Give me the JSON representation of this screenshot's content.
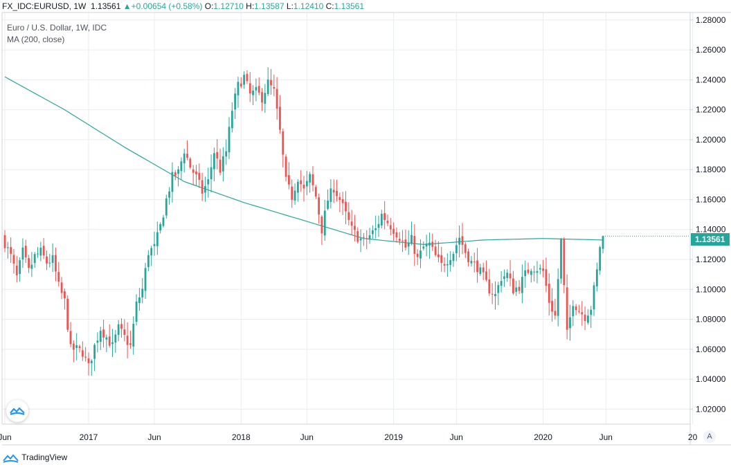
{
  "header": {
    "symbol": "FX_IDC:EURUSD, 1W",
    "last": "1.13561",
    "change": "+0.00654 (+0.58%)",
    "o_label": "O:",
    "o": "1.12710",
    "h_label": "H:",
    "h": "1.13587",
    "l_label": "L:",
    "l": "1.12410",
    "c_label": "C:",
    "c": "1.13561"
  },
  "legend": {
    "series": "Euro / U.S. Dollar, 1W, IDC",
    "indicator": "MA (200, close)"
  },
  "price_label": "1.13561",
  "auto_label": "A",
  "brand": "TradingView",
  "colors": {
    "up": "#26a69a",
    "down": "#ef5350",
    "ma": "#26a69a",
    "grid": "#e9ecf1",
    "axis": "#cfd3dc"
  },
  "chart_data": {
    "type": "candlestick",
    "yaxis_ticks": [
      "1.28000",
      "1.26000",
      "1.24000",
      "1.22000",
      "1.20000",
      "1.18000",
      "1.16000",
      "1.14000",
      "1.12000",
      "1.10000",
      "1.08000",
      "1.06000",
      "1.04000",
      "1.02000"
    ],
    "ylim": [
      1.01,
      1.285
    ],
    "xaxis_ticks": [
      {
        "label": "Jun",
        "week": 0
      },
      {
        "label": "2017",
        "week": 28
      },
      {
        "label": "Jun",
        "week": 50
      },
      {
        "label": "2018",
        "week": 79
      },
      {
        "label": "Jun",
        "week": 101
      },
      {
        "label": "2019",
        "week": 130
      },
      {
        "label": "Jun",
        "week": 151
      },
      {
        "label": "2020",
        "week": 180
      },
      {
        "label": "Jun",
        "week": 201
      },
      {
        "label": "20",
        "week": 230
      }
    ],
    "close_anchors": [
      [
        0,
        1.131
      ],
      [
        2,
        1.122
      ],
      [
        4,
        1.108
      ],
      [
        6,
        1.125
      ],
      [
        8,
        1.112
      ],
      [
        10,
        1.122
      ],
      [
        12,
        1.125
      ],
      [
        14,
        1.118
      ],
      [
        16,
        1.12
      ],
      [
        18,
        1.102
      ],
      [
        20,
        1.092
      ],
      [
        22,
        1.06
      ],
      [
        24,
        1.06
      ],
      [
        26,
        1.058
      ],
      [
        28,
        1.048
      ],
      [
        30,
        1.062
      ],
      [
        32,
        1.074
      ],
      [
        34,
        1.068
      ],
      [
        36,
        1.062
      ],
      [
        38,
        1.074
      ],
      [
        40,
        1.068
      ],
      [
        42,
        1.062
      ],
      [
        44,
        1.09
      ],
      [
        46,
        1.1
      ],
      [
        48,
        1.125
      ],
      [
        50,
        1.128
      ],
      [
        52,
        1.142
      ],
      [
        54,
        1.16
      ],
      [
        56,
        1.175
      ],
      [
        58,
        1.178
      ],
      [
        60,
        1.193
      ],
      [
        62,
        1.182
      ],
      [
        64,
        1.175
      ],
      [
        66,
        1.165
      ],
      [
        68,
        1.172
      ],
      [
        70,
        1.192
      ],
      [
        72,
        1.18
      ],
      [
        74,
        1.192
      ],
      [
        76,
        1.22
      ],
      [
        78,
        1.236
      ],
      [
        80,
        1.242
      ],
      [
        82,
        1.23
      ],
      [
        84,
        1.232
      ],
      [
        86,
        1.228
      ],
      [
        88,
        1.238
      ],
      [
        90,
        1.232
      ],
      [
        92,
        1.205
      ],
      [
        94,
        1.172
      ],
      [
        96,
        1.162
      ],
      [
        98,
        1.175
      ],
      [
        100,
        1.166
      ],
      [
        102,
        1.175
      ],
      [
        104,
        1.162
      ],
      [
        106,
        1.14
      ],
      [
        108,
        1.16
      ],
      [
        110,
        1.168
      ],
      [
        112,
        1.16
      ],
      [
        114,
        1.15
      ],
      [
        116,
        1.14
      ],
      [
        118,
        1.135
      ],
      [
        120,
        1.132
      ],
      [
        122,
        1.136
      ],
      [
        124,
        1.14
      ],
      [
        126,
        1.15
      ],
      [
        128,
        1.145
      ],
      [
        130,
        1.14
      ],
      [
        132,
        1.135
      ],
      [
        134,
        1.128
      ],
      [
        136,
        1.133
      ],
      [
        138,
        1.12
      ],
      [
        140,
        1.128
      ],
      [
        142,
        1.13
      ],
      [
        144,
        1.122
      ],
      [
        146,
        1.116
      ],
      [
        148,
        1.12
      ],
      [
        150,
        1.125
      ],
      [
        152,
        1.135
      ],
      [
        154,
        1.125
      ],
      [
        156,
        1.118
      ],
      [
        158,
        1.115
      ],
      [
        160,
        1.108
      ],
      [
        162,
        1.1
      ],
      [
        164,
        1.096
      ],
      [
        166,
        1.108
      ],
      [
        168,
        1.11
      ],
      [
        170,
        1.1
      ],
      [
        172,
        1.102
      ],
      [
        174,
        1.11
      ],
      [
        176,
        1.115
      ],
      [
        178,
        1.114
      ],
      [
        180,
        1.112
      ],
      [
        182,
        1.092
      ],
      [
        184,
        1.082
      ],
      [
        186,
        1.132
      ],
      [
        188,
        1.07
      ],
      [
        190,
        1.092
      ],
      [
        192,
        1.086
      ],
      [
        194,
        1.082
      ],
      [
        196,
        1.088
      ],
      [
        198,
        1.112
      ],
      [
        199,
        1.129
      ],
      [
        200,
        1.1356
      ]
    ],
    "ma_anchors": [
      [
        0,
        1.242
      ],
      [
        20,
        1.22
      ],
      [
        40,
        1.195
      ],
      [
        60,
        1.172
      ],
      [
        80,
        1.158
      ],
      [
        100,
        1.146
      ],
      [
        120,
        1.134
      ],
      [
        140,
        1.13
      ],
      [
        160,
        1.133
      ],
      [
        180,
        1.134
      ],
      [
        200,
        1.133
      ]
    ]
  }
}
